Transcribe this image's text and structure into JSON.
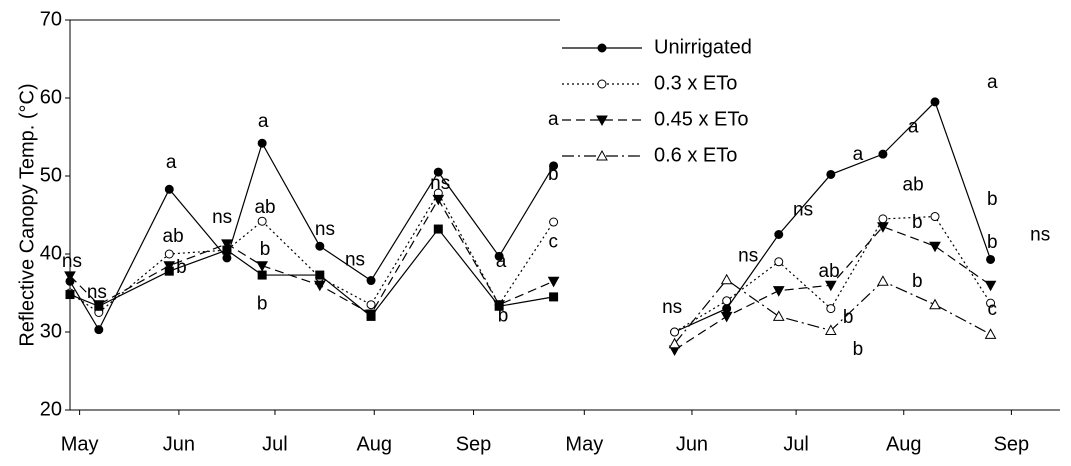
{
  "chart_data": [
    {
      "type": "line",
      "y_label": "Reflective Canopy Temp. (°C)",
      "ylim": [
        20,
        70
      ],
      "yticks": [
        20,
        30,
        40,
        50,
        60,
        70
      ],
      "xlim": [
        -3,
        150
      ],
      "xticks": [
        {
          "value": 0,
          "label": "May"
        },
        {
          "value": 31,
          "label": "Jun"
        },
        {
          "value": 61,
          "label": "Jul"
        },
        {
          "value": 92,
          "label": "Aug"
        },
        {
          "value": 123,
          "label": "Sep"
        }
      ],
      "x": [
        -3,
        6,
        28,
        46,
        57,
        75,
        91,
        112,
        131,
        148
      ],
      "series": [
        {
          "name": "Unirrigated",
          "color": "#000000",
          "marker": "circle-filled",
          "linestyle": "solid",
          "values": [
            36.5,
            30.3,
            48.3,
            39.5,
            54.2,
            41,
            36.6,
            50.5,
            39.7,
            51.3
          ]
        },
        {
          "name": "0.3 x ETo",
          "color": "#000000",
          "marker": "circle-open",
          "linestyle": "dotted",
          "values": [
            35,
            32.5,
            40,
            40.5,
            44.2,
            37,
            33.5,
            47.8,
            33.5,
            44.1
          ]
        },
        {
          "name": "0.45 x ETo",
          "color": "#000000",
          "marker": "triangle-down-filled",
          "linestyle": "dashed",
          "values": [
            37.2,
            33.5,
            38.5,
            41.3,
            38.5,
            36,
            32.3,
            47,
            33.5,
            36.5
          ]
        },
        {
          "name": "0.6 x ETo",
          "color": "#000000",
          "marker": "square-filled",
          "linestyle": "solid",
          "values": [
            34.8,
            33.3,
            37.8,
            40.5,
            37.3,
            37.3,
            32,
            43.2,
            33.3,
            34.5
          ]
        }
      ],
      "annotations": [
        {
          "text": "ns",
          "x": -2.4,
          "y": 39
        },
        {
          "text": "ns",
          "x": 5.4,
          "y": 35
        },
        {
          "text": "a",
          "x": 28.6,
          "y": 51.7
        },
        {
          "text": "ab",
          "x": 29.2,
          "y": 42.2
        },
        {
          "text": "b",
          "x": 31.8,
          "y": 38.2
        },
        {
          "text": "ns",
          "x": 44.5,
          "y": 44.6
        },
        {
          "text": "a",
          "x": 57.3,
          "y": 56.9
        },
        {
          "text": "ab",
          "x": 57.9,
          "y": 45.9
        },
        {
          "text": "b",
          "x": 57.9,
          "y": 40.5
        },
        {
          "text": "b",
          "x": 57,
          "y": 33.5
        },
        {
          "text": "ns",
          "x": 76.6,
          "y": 43.1
        },
        {
          "text": "ns",
          "x": 86,
          "y": 39.2
        },
        {
          "text": "ns",
          "x": 112.6,
          "y": 49
        },
        {
          "text": "a",
          "x": 131.6,
          "y": 39
        },
        {
          "text": "b",
          "x": 132.2,
          "y": 32
        },
        {
          "text": "a",
          "x": 147.9,
          "y": 57.2
        },
        {
          "text": "b",
          "x": 147.9,
          "y": 50.1
        },
        {
          "text": "c",
          "x": 147.9,
          "y": 41.5
        }
      ]
    },
    {
      "type": "line",
      "ylim": [
        20,
        70
      ],
      "xlim": [
        -7,
        137
      ],
      "xticks": [
        {
          "value": 0,
          "label": "May"
        },
        {
          "value": 31,
          "label": "Jun"
        },
        {
          "value": 61,
          "label": "Jul"
        },
        {
          "value": 92,
          "label": "Aug"
        },
        {
          "value": 123,
          "label": "Sep"
        }
      ],
      "x": [
        26,
        41,
        56,
        71,
        86,
        101,
        117
      ],
      "legend": "upper left",
      "series": [
        {
          "name": "Unirrigated",
          "color": "#000000",
          "marker": "circle-filled",
          "linestyle": "solid",
          "values": [
            30,
            33,
            42.5,
            50.2,
            52.8,
            59.5,
            39.3
          ]
        },
        {
          "name": "0.3 x ETo",
          "color": "#000000",
          "marker": "circle-open",
          "linestyle": "dotted",
          "values": [
            30,
            34,
            39,
            33,
            44.5,
            44.8,
            33.7
          ]
        },
        {
          "name": "0.45 x ETo",
          "color": "#000000",
          "marker": "triangle-down-filled",
          "linestyle": "dashed",
          "values": [
            27.7,
            32,
            35.3,
            36,
            43.5,
            41,
            36
          ]
        },
        {
          "name": "0.6 x ETo",
          "color": "#000000",
          "marker": "triangle-up-open",
          "linestyle": "dashdot",
          "values": [
            28.5,
            36.7,
            32,
            30.2,
            36.5,
            33.5,
            29.7
          ]
        }
      ],
      "annotations": [
        {
          "text": "ns",
          "x": 25.3,
          "y": 33.1
        },
        {
          "text": "ns",
          "x": 47.2,
          "y": 39.7
        },
        {
          "text": "ns",
          "x": 63,
          "y": 45.6
        },
        {
          "text": "ab",
          "x": 70.5,
          "y": 37.7
        },
        {
          "text": "b",
          "x": 76,
          "y": 31.8
        },
        {
          "text": "b",
          "x": 78.8,
          "y": 27.7
        },
        {
          "text": "a",
          "x": 78.8,
          "y": 52.7
        },
        {
          "text": "a",
          "x": 94.7,
          "y": 56.2
        },
        {
          "text": "ab",
          "x": 94.7,
          "y": 48.8
        },
        {
          "text": "b",
          "x": 95.9,
          "y": 44
        },
        {
          "text": "b",
          "x": 95.9,
          "y": 36.4
        },
        {
          "text": "a",
          "x": 117.5,
          "y": 61.9
        },
        {
          "text": "b",
          "x": 117.5,
          "y": 46.9
        },
        {
          "text": "b",
          "x": 117.5,
          "y": 41.4
        },
        {
          "text": "c",
          "x": 117.5,
          "y": 32.8
        },
        {
          "text": "ns",
          "x": 131.3,
          "y": 42.4
        }
      ]
    }
  ]
}
